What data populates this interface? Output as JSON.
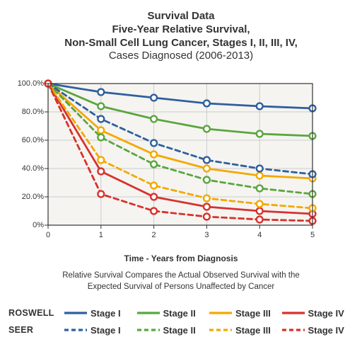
{
  "title": {
    "line1": "Survival Data",
    "line2": "Five-Year Relative Survival,",
    "line3": "Non-Small Cell Lung Cancer, Stages I, II, III, IV,",
    "line4": "Cases Diagnosed (2006-2013)",
    "fontsize_bold": 15,
    "fontsize_sub": 15,
    "color": "#333333"
  },
  "chart": {
    "type": "line",
    "background_color": "#f5f4f1",
    "plot_border_color": "#333333",
    "grid_color": "#cccccc",
    "x": {
      "min": 0,
      "max": 5,
      "ticks": [
        0,
        1,
        2,
        3,
        4,
        5
      ],
      "labels": [
        "0",
        "1",
        "2",
        "3",
        "4",
        "5"
      ]
    },
    "y": {
      "min": 0,
      "max": 100,
      "ticks": [
        0,
        20,
        40,
        60,
        80,
        100
      ],
      "labels": [
        "0%",
        "20.0%",
        "40.0%",
        "60.0%",
        "80.0%",
        "100.0%"
      ]
    },
    "x_title": "Time - Years from Diagnosis",
    "axis_title_fontsize": 12,
    "tick_fontsize": 11,
    "line_width": 2.8,
    "marker_radius": 4.4,
    "marker_fill": "#ffffff",
    "marker_stroke_width": 2.4,
    "series": [
      {
        "id": "roswell-stage1",
        "label": "Stage I",
        "color": "#2f5f9e",
        "dash": "solid",
        "values": [
          100,
          94,
          90,
          86,
          84,
          82.5
        ]
      },
      {
        "id": "roswell-stage2",
        "label": "Stage II",
        "color": "#5aa63d",
        "dash": "solid",
        "values": [
          100,
          84,
          75,
          68,
          64.5,
          63
        ]
      },
      {
        "id": "roswell-stage3",
        "label": "Stage III",
        "color": "#f2a900",
        "dash": "solid",
        "values": [
          100,
          67,
          50,
          40,
          35,
          33
        ]
      },
      {
        "id": "roswell-stage4",
        "label": "Stage IV",
        "color": "#d7322d",
        "dash": "solid",
        "values": [
          100,
          38,
          20,
          13,
          10,
          8
        ]
      },
      {
        "id": "seer-stage1",
        "label": "Stage I",
        "color": "#2f5f9e",
        "dash": "dashed",
        "values": [
          100,
          75,
          58,
          46,
          40,
          36
        ]
      },
      {
        "id": "seer-stage2",
        "label": "Stage II",
        "color": "#5aa63d",
        "dash": "dashed",
        "values": [
          100,
          62,
          43,
          32,
          26,
          22
        ]
      },
      {
        "id": "seer-stage3",
        "label": "Stage III",
        "color": "#f2a900",
        "dash": "dashed",
        "values": [
          100,
          46,
          28,
          19,
          15,
          12
        ]
      },
      {
        "id": "seer-stage4",
        "label": "Stage IV",
        "color": "#d7322d",
        "dash": "dashed",
        "values": [
          100,
          22,
          10,
          6,
          4,
          3
        ]
      }
    ]
  },
  "footnote": {
    "line1": "Relative Survival Compares the Actual Observed Survival with the",
    "line2": "Expected Survival of Persons Unaffected by Cancer",
    "fontsize": 11.5
  },
  "legend": {
    "groups": [
      {
        "label": "ROSWELL",
        "dash": "solid"
      },
      {
        "label": "SEER",
        "dash": "dashed"
      }
    ],
    "items": [
      {
        "label": "Stage I",
        "color": "#2f5f9e"
      },
      {
        "label": "Stage II",
        "color": "#5aa63d"
      },
      {
        "label": "Stage III",
        "color": "#f2a900"
      },
      {
        "label": "Stage IV",
        "color": "#d7322d"
      }
    ],
    "label_fontsize": 13,
    "group_fontsize": 12.5,
    "swatch_line_width": 3.2
  }
}
